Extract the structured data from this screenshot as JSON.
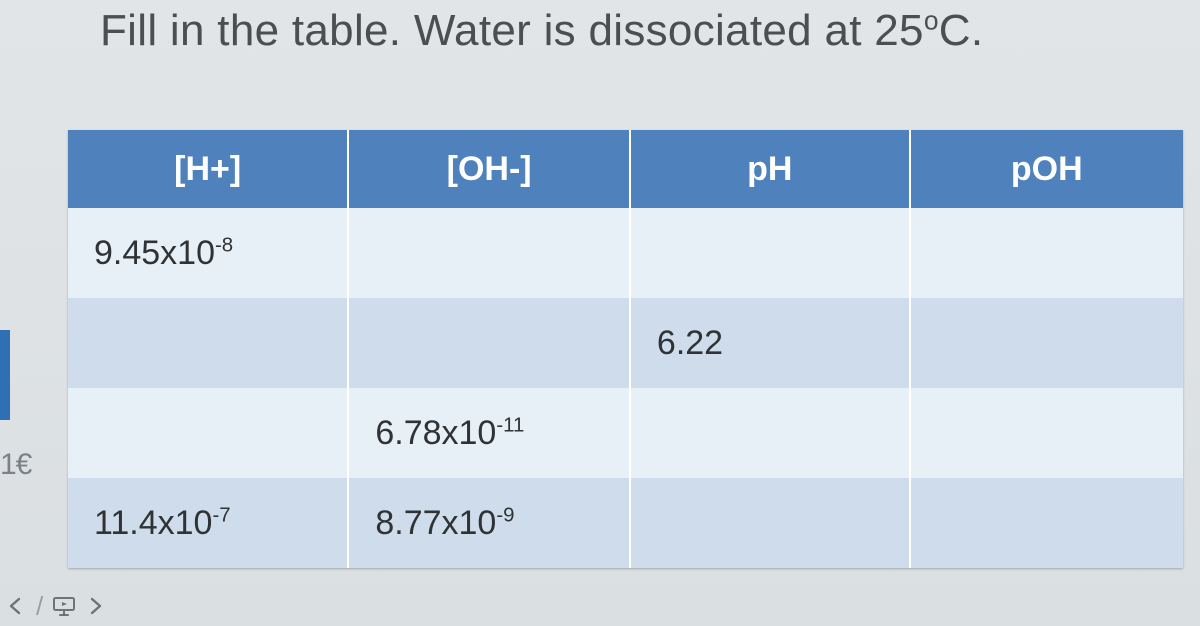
{
  "title_html": "Fill in the table. Water is dissociated at 25<span class='sup'>o</span>C.",
  "table": {
    "columns": [
      "[H+]",
      "[OH-]",
      "pH",
      "pOH"
    ],
    "header_bg": "#4f81bd",
    "header_fg": "#ffffff",
    "row_light_bg": "#e7eff7",
    "row_dark_bg": "#cedceb",
    "cell_fontsize": 34,
    "header_fontsize": 34,
    "rows": [
      {
        "h": "9.45x10<span class='sup'>-8</span>",
        "oh": "",
        "ph": "",
        "poh": ""
      },
      {
        "h": "",
        "oh": "",
        "ph": "6.22",
        "poh": ""
      },
      {
        "h": "",
        "oh": "6.78x10<span class='sup'>-11</span>",
        "ph": "",
        "poh": ""
      },
      {
        "h": "11.4x10<span class='sup'>-7</span>",
        "oh": "8.77x10<span class='sup'>-9</span>",
        "ph": "",
        "poh": ""
      }
    ]
  },
  "edge_label": "1€",
  "colors": {
    "page_bg": "#dde1e4",
    "title_color": "#4c4f52"
  },
  "toolbar": {
    "back_icon": "arrow-left",
    "sep": "/",
    "present_icon": "slideshow",
    "next_icon": "arrow-right"
  }
}
